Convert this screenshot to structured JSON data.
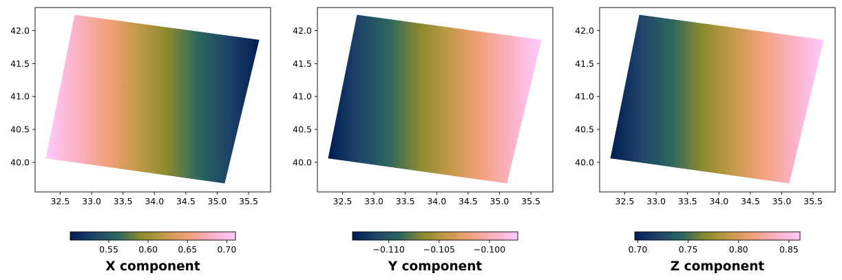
{
  "colormap": [
    "#001c55",
    "#1e4468",
    "#2c6660",
    "#8a8a2e",
    "#c49a48",
    "#f3a07c",
    "#fbb2c4",
    "#ffcbff"
  ],
  "chart_data": [
    {
      "type": "heatmap",
      "title": "",
      "xlim": [
        32.1,
        35.85
      ],
      "ylim": [
        39.55,
        42.35
      ],
      "xticks": [
        "32.5",
        "33.0",
        "33.5",
        "34.0",
        "34.5",
        "35.0",
        "35.5"
      ],
      "yticks": [
        "40.0",
        "40.5",
        "41.0",
        "41.5",
        "42.0"
      ],
      "grid": false,
      "region_corners": [
        [
          32.27,
          40.06
        ],
        [
          32.73,
          42.24
        ],
        [
          35.67,
          41.86
        ],
        [
          35.12,
          39.68
        ]
      ],
      "color_gradient": "west-to-east",
      "value_west": 0.72,
      "value_east": 0.5,
      "colorbar": {
        "label": "X component",
        "ticks": [
          "0.55",
          "0.60",
          "0.65",
          "0.70"
        ],
        "min": 0.501,
        "max": 0.711,
        "orientation": "horizontal",
        "placement": "bottom"
      }
    },
    {
      "type": "heatmap",
      "title": "",
      "xlim": [
        32.1,
        35.85
      ],
      "ylim": [
        39.55,
        42.35
      ],
      "xticks": [
        "32.5",
        "33.0",
        "33.5",
        "34.0",
        "34.5",
        "35.0",
        "35.5"
      ],
      "yticks": [
        "40.0",
        "40.5",
        "41.0",
        "41.5",
        "42.0"
      ],
      "grid": false,
      "region_corners": [
        [
          32.27,
          40.06
        ],
        [
          32.73,
          42.24
        ],
        [
          35.67,
          41.86
        ],
        [
          35.12,
          39.68
        ]
      ],
      "color_gradient": "west-to-east",
      "value_west": -0.114,
      "value_east": -0.097,
      "colorbar": {
        "label": "Y component",
        "ticks": [
          "−0.110",
          "−0.105",
          "−0.100"
        ],
        "min": -0.1136,
        "max": -0.0972,
        "orientation": "horizontal",
        "placement": "bottom"
      }
    },
    {
      "type": "heatmap",
      "title": "",
      "xlim": [
        32.1,
        35.85
      ],
      "ylim": [
        39.55,
        42.35
      ],
      "xticks": [
        "32.5",
        "33.0",
        "33.5",
        "34.0",
        "34.5",
        "35.0",
        "35.5"
      ],
      "yticks": [
        "40.0",
        "40.5",
        "41.0",
        "41.5",
        "42.0"
      ],
      "grid": false,
      "region_corners": [
        [
          32.27,
          40.06
        ],
        [
          32.73,
          42.24
        ],
        [
          35.67,
          41.86
        ],
        [
          35.12,
          39.68
        ]
      ],
      "color_gradient": "west-to-east",
      "value_west": 0.695,
      "value_east": 0.862,
      "colorbar": {
        "label": "Z component",
        "ticks": [
          "0.70",
          "0.75",
          "0.80",
          "0.85"
        ],
        "min": 0.697,
        "max": 0.861,
        "orientation": "horizontal",
        "placement": "bottom"
      }
    }
  ]
}
